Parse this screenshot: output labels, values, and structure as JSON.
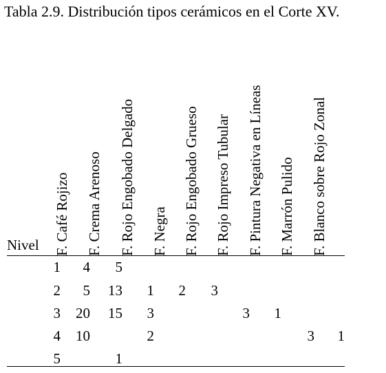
{
  "title": "Tabla 2.9. Distribución tipos cerámicos en el Corte XV.",
  "row_header": "Nivel",
  "columns": [
    "F. Café Rojizo",
    "F. Crema Arenoso",
    "F. Rojo Engobado Delgado",
    "F. Negra",
    "F. Rojo Engobado Grueso",
    "F. Rojo Impreso Tubular",
    "F. Pintura Negativa en Líneas",
    "F. Marrón Pulido",
    "F. Blanco sobre Rojo Zonal"
  ],
  "rows": [
    {
      "nivel": "1",
      "cells": [
        "4",
        "5",
        "",
        "",
        "",
        "",
        "",
        "",
        ""
      ]
    },
    {
      "nivel": "2",
      "cells": [
        "5",
        "13",
        "1",
        "2",
        "3",
        "",
        "",
        "",
        ""
      ]
    },
    {
      "nivel": "3",
      "cells": [
        "20",
        "15",
        "3",
        "",
        "",
        "3",
        "1",
        "",
        ""
      ]
    },
    {
      "nivel": "4",
      "cells": [
        "10",
        "",
        "2",
        "",
        "",
        "",
        "",
        "3",
        "1"
      ]
    },
    {
      "nivel": "5",
      "cells": [
        "",
        "1",
        "",
        "",
        "",
        "",
        "",
        "",
        ""
      ]
    }
  ]
}
